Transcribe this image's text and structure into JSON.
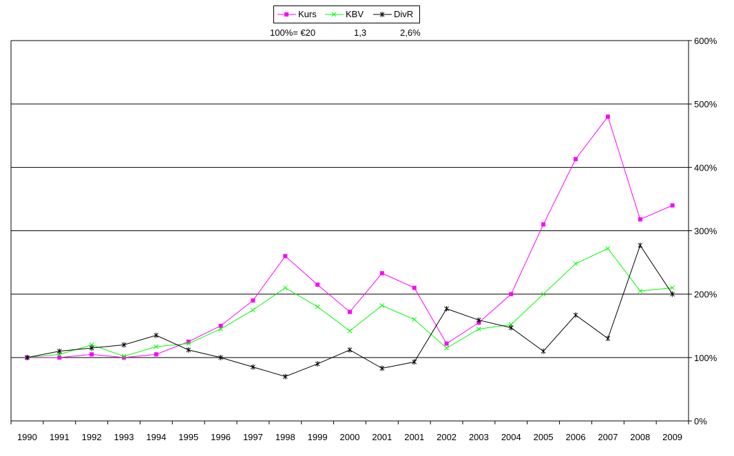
{
  "legend": {
    "series_labels": [
      "Kurs",
      "KBV",
      "DivR"
    ]
  },
  "base_notes": {
    "kurs": "100%= €20",
    "kbv": "1,3",
    "divr": "2,6%"
  },
  "colors": {
    "kurs": "#ff00ff",
    "kbv": "#00ff00",
    "divr": "#000000",
    "grid": "#000000"
  },
  "chart_data": {
    "type": "line",
    "categories": [
      "1990",
      "1991",
      "1992",
      "1993",
      "1994",
      "1995",
      "1996",
      "1997",
      "1998",
      "1999",
      "2000",
      "2001",
      "2001",
      "2002",
      "2003",
      "2004",
      "2005",
      "2006",
      "2007",
      "2008",
      "2009"
    ],
    "series": [
      {
        "name": "Kurs",
        "values": [
          100,
          100,
          105,
          100,
          105,
          125,
          150,
          190,
          260,
          215,
          172,
          233,
          210,
          122,
          155,
          200,
          310,
          413,
          480,
          318,
          340
        ]
      },
      {
        "name": "KBV",
        "values": [
          100,
          105,
          120,
          102,
          117,
          122,
          145,
          175,
          210,
          180,
          142,
          182,
          160,
          115,
          145,
          152,
          200,
          248,
          272,
          205,
          210
        ]
      },
      {
        "name": "DivR",
        "values": [
          100,
          110,
          115,
          120,
          135,
          112,
          100,
          85,
          70,
          90,
          112,
          83,
          93,
          177,
          159,
          147,
          110,
          167,
          130,
          277,
          200
        ]
      }
    ],
    "ylim": [
      0,
      600
    ],
    "yticks": [
      "0%",
      "100%",
      "200%",
      "300%",
      "400%",
      "500%",
      "600%"
    ],
    "yaxis_position": "right",
    "grid": true,
    "legend_position": "top-center"
  }
}
